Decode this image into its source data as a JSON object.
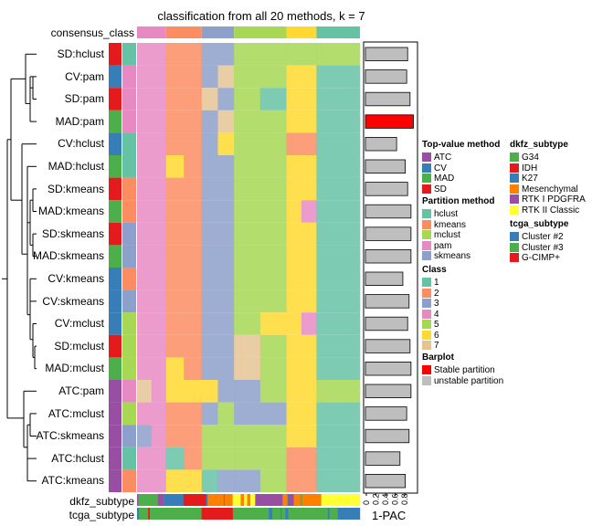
{
  "title": "classification from all 20 methods, k = 7",
  "labels": {
    "consensus": "consensus_class",
    "dkfz": "dkfz_subtype",
    "tcga": "tcga_subtype",
    "barplot_axis": "1-PAC"
  },
  "colors": {
    "class": {
      "1": "#66C2A5",
      "2": "#FC8D62",
      "3": "#8DA0CB",
      "4": "#E78AC3",
      "5": "#A6D854",
      "6": "#FFD92F",
      "7": "#E5C494"
    },
    "top": {
      "ATC": "#984EA3",
      "CV": "#377EB8",
      "MAD": "#4DAF4A",
      "SD": "#E41A1C"
    },
    "part": {
      "hclust": "#66C2A5",
      "kmeans": "#FC8D62",
      "mclust": "#A6D854",
      "pam": "#E78AC3",
      "skmeans": "#8DA0CB"
    },
    "dkfz": {
      "G34": "#4DAF4A",
      "IDH": "#E41A1C",
      "K27": "#377EB8",
      "Mesenchymal": "#FF7F00",
      "RTK I PDGFRA": "#984EA3",
      "RTK II Classic": "#FFFF33"
    },
    "tcga": {
      "Cluster #2": "#377EB8",
      "Cluster #3": "#4DAF4A",
      "G-CIMP+": "#E41A1C"
    },
    "stable": "#FF0000",
    "unstable": "#BEBEBE"
  },
  "legends": [
    {
      "title": "Top-value method",
      "items": [
        [
          "ATC",
          "#984EA3"
        ],
        [
          "CV",
          "#377EB8"
        ],
        [
          "MAD",
          "#4DAF4A"
        ],
        [
          "SD",
          "#E41A1C"
        ]
      ]
    },
    {
      "title": "Partition method",
      "items": [
        [
          "hclust",
          "#66C2A5"
        ],
        [
          "kmeans",
          "#FC8D62"
        ],
        [
          "mclust",
          "#A6D854"
        ],
        [
          "pam",
          "#E78AC3"
        ],
        [
          "skmeans",
          "#8DA0CB"
        ]
      ]
    },
    {
      "title": "Class",
      "items": [
        [
          "1",
          "#66C2A5"
        ],
        [
          "2",
          "#FC8D62"
        ],
        [
          "3",
          "#8DA0CB"
        ],
        [
          "4",
          "#E78AC3"
        ],
        [
          "5",
          "#A6D854"
        ],
        [
          "6",
          "#FFD92F"
        ],
        [
          "7",
          "#E5C494"
        ]
      ]
    },
    {
      "title": "Barplot",
      "items": [
        [
          "Stable partition",
          "#FF0000"
        ],
        [
          "unstable partition",
          "#BEBEBE"
        ]
      ]
    },
    {
      "title": "dkfz_subtype",
      "items": [
        [
          "G34",
          "#4DAF4A"
        ],
        [
          "IDH",
          "#E41A1C"
        ],
        [
          "K27",
          "#377EB8"
        ],
        [
          "Mesenchymal",
          "#FF7F00"
        ],
        [
          "RTK I PDGFRA",
          "#984EA3"
        ],
        [
          "RTK II Classic",
          "#FFFF33"
        ]
      ]
    },
    {
      "title": "tcga_subtype",
      "items": [
        [
          "Cluster #2",
          "#377EB8"
        ],
        [
          "Cluster #3",
          "#4DAF4A"
        ],
        [
          "G-CIMP+",
          "#E41A1C"
        ]
      ]
    }
  ],
  "chart_data": {
    "type": "heatmap",
    "title": "classification from all 20 methods, k = 7",
    "consensus_class": [
      4,
      2,
      3,
      5,
      6,
      1
    ],
    "consensus_block_share": [
      0.13,
      0.16,
      0.145,
      0.235,
      0.135,
      0.195
    ],
    "rows": [
      {
        "label": "SD:hclust",
        "top": "SD",
        "part": "hclust",
        "pac": 0.88,
        "stable": false,
        "blocks": [
          [
            4
          ],
          [
            2
          ],
          [
            3
          ],
          [
            5
          ],
          [
            5
          ],
          [
            5
          ]
        ]
      },
      {
        "label": "CV:pam",
        "top": "CV",
        "part": "pam",
        "pac": 0.86,
        "stable": false,
        "blocks": [
          [
            4
          ],
          [
            2
          ],
          [
            3,
            7
          ],
          [
            5
          ],
          [
            6
          ],
          [
            1
          ]
        ]
      },
      {
        "label": "SD:pam",
        "top": "SD",
        "part": "pam",
        "pac": 0.93,
        "stable": false,
        "blocks": [
          [
            4
          ],
          [
            2
          ],
          [
            7,
            3
          ],
          [
            5,
            1
          ],
          [
            6
          ],
          [
            1
          ]
        ]
      },
      {
        "label": "MAD:pam",
        "top": "MAD",
        "part": "pam",
        "pac": 1.0,
        "stable": true,
        "blocks": [
          [
            4
          ],
          [
            2
          ],
          [
            3,
            7
          ],
          [
            5
          ],
          [
            6
          ],
          [
            1
          ]
        ]
      },
      {
        "label": "CV:hclust",
        "top": "CV",
        "part": "hclust",
        "pac": 0.65,
        "stable": false,
        "blocks": [
          [
            4
          ],
          [
            2
          ],
          [
            3,
            6
          ],
          [
            5
          ],
          [
            2
          ],
          [
            1
          ]
        ]
      },
      {
        "label": "MAD:hclust",
        "top": "MAD",
        "part": "hclust",
        "pac": 0.83,
        "stable": false,
        "blocks": [
          [
            4
          ],
          [
            6,
            2
          ],
          [
            3
          ],
          [
            5
          ],
          [
            6
          ],
          [
            1
          ]
        ]
      },
      {
        "label": "SD:kmeans",
        "top": "SD",
        "part": "kmeans",
        "pac": 0.88,
        "stable": false,
        "blocks": [
          [
            4
          ],
          [
            2
          ],
          [
            3
          ],
          [
            5
          ],
          [
            6
          ],
          [
            1
          ]
        ]
      },
      {
        "label": "MAD:kmeans",
        "top": "MAD",
        "part": "kmeans",
        "pac": 0.95,
        "stable": false,
        "blocks": [
          [
            4
          ],
          [
            2
          ],
          [
            3
          ],
          [
            5
          ],
          [
            6,
            4
          ],
          [
            1
          ]
        ]
      },
      {
        "label": "SD:skmeans",
        "top": "SD",
        "part": "skmeans",
        "pac": 0.95,
        "stable": false,
        "blocks": [
          [
            4
          ],
          [
            2
          ],
          [
            3
          ],
          [
            5
          ],
          [
            6
          ],
          [
            1
          ]
        ]
      },
      {
        "label": "MAD:skmeans",
        "top": "MAD",
        "part": "skmeans",
        "pac": 0.95,
        "stable": false,
        "blocks": [
          [
            4
          ],
          [
            2
          ],
          [
            3
          ],
          [
            5
          ],
          [
            6
          ],
          [
            1
          ]
        ]
      },
      {
        "label": "CV:kmeans",
        "top": "CV",
        "part": "kmeans",
        "pac": 0.78,
        "stable": false,
        "blocks": [
          [
            4
          ],
          [
            2
          ],
          [
            3
          ],
          [
            5
          ],
          [
            6
          ],
          [
            1
          ]
        ]
      },
      {
        "label": "CV:skmeans",
        "top": "CV",
        "part": "skmeans",
        "pac": 0.91,
        "stable": false,
        "blocks": [
          [
            4
          ],
          [
            2
          ],
          [
            3
          ],
          [
            5
          ],
          [
            6
          ],
          [
            1
          ]
        ]
      },
      {
        "label": "CV:mclust",
        "top": "CV",
        "part": "mclust",
        "pac": 0.88,
        "stable": false,
        "blocks": [
          [
            4
          ],
          [
            2
          ],
          [
            3
          ],
          [
            5,
            6
          ],
          [
            6,
            4
          ],
          [
            1
          ]
        ]
      },
      {
        "label": "SD:mclust",
        "top": "SD",
        "part": "mclust",
        "pac": 0.93,
        "stable": false,
        "blocks": [
          [
            4
          ],
          [
            2
          ],
          [
            3
          ],
          [
            7,
            5
          ],
          [
            6
          ],
          [
            1
          ]
        ]
      },
      {
        "label": "MAD:mclust",
        "top": "MAD",
        "part": "mclust",
        "pac": 0.95,
        "stable": false,
        "blocks": [
          [
            4
          ],
          [
            6,
            2
          ],
          [
            3
          ],
          [
            7,
            5
          ],
          [
            6
          ],
          [
            1
          ]
        ]
      },
      {
        "label": "ATC:pam",
        "top": "ATC",
        "part": "pam",
        "pac": 0.95,
        "stable": false,
        "blocks": [
          [
            7,
            4
          ],
          [
            6
          ],
          [
            6,
            3
          ],
          [
            3,
            5
          ],
          [
            6
          ],
          [
            5
          ]
        ]
      },
      {
        "label": "ATC:mclust",
        "top": "ATC",
        "part": "mclust",
        "pac": 0.86,
        "stable": false,
        "blocks": [
          [
            4
          ],
          [
            2
          ],
          [
            3,
            5
          ],
          [
            3
          ],
          [
            6
          ],
          [
            1
          ]
        ]
      },
      {
        "label": "ATC:skmeans",
        "top": "ATC",
        "part": "skmeans",
        "pac": 0.91,
        "stable": false,
        "blocks": [
          [
            3,
            4
          ],
          [
            2
          ],
          [
            5
          ],
          [
            5
          ],
          [
            6
          ],
          [
            1
          ]
        ]
      },
      {
        "label": "ATC:hclust",
        "top": "ATC",
        "part": "hclust",
        "pac": 0.72,
        "stable": false,
        "blocks": [
          [
            4
          ],
          [
            1,
            2
          ],
          [
            5
          ],
          [
            5
          ],
          [
            2
          ],
          [
            1
          ]
        ]
      },
      {
        "label": "ATC:kmeans",
        "top": "ATC",
        "part": "kmeans",
        "pac": 0.83,
        "stable": false,
        "blocks": [
          [
            4
          ],
          [
            6
          ],
          [
            1,
            3
          ],
          [
            3,
            5
          ],
          [
            2
          ],
          [
            1
          ]
        ]
      }
    ],
    "dkfz_subtype": [
      [
        "RTK I PDGFRA",
        0.8
      ],
      [
        "G34",
        12
      ],
      [
        "RTK I PDGFRA",
        4
      ],
      [
        "K27",
        12
      ],
      [
        "IDH",
        14
      ],
      [
        "K27",
        1
      ],
      [
        "Mesenchymal",
        10
      ],
      [
        "K27",
        0.5
      ],
      [
        "Mesenchymal",
        5
      ],
      [
        "RTK II Classic",
        5
      ],
      [
        "Mesenchymal",
        2
      ],
      [
        "RTK II Classic",
        2
      ],
      [
        "Mesenchymal",
        2
      ],
      [
        "RTK II Classic",
        3
      ],
      [
        "RTK I PDGFRA",
        17
      ],
      [
        "Mesenchymal",
        3
      ],
      [
        "K27",
        1
      ],
      [
        "RTK I PDGFRA",
        3
      ],
      [
        "Mesenchymal",
        4
      ],
      [
        "G34",
        1
      ],
      [
        "Mesenchymal",
        12
      ],
      [
        "RTK II Classic",
        24
      ]
    ],
    "tcga_subtype": [
      [
        "Cluster #2",
        2
      ],
      [
        "Cluster #3",
        10
      ],
      [
        "G-CIMP+",
        2
      ],
      [
        "Cluster #3",
        56
      ],
      [
        "G-CIMP+",
        34
      ],
      [
        "Cluster #3",
        39
      ],
      [
        "Cluster #2",
        4
      ],
      [
        "Cluster #3",
        9
      ],
      [
        "Cluster #2",
        1
      ],
      [
        "Cluster #3",
        4
      ],
      [
        "Cluster #2",
        3
      ],
      [
        "Cluster #3",
        43
      ],
      [
        "Cluster #2",
        2
      ],
      [
        "Cluster #3",
        9
      ],
      [
        "Cluster #2",
        24
      ]
    ],
    "barplot": {
      "xlabel": "1-PAC",
      "ticks": [
        "0",
        "0.2",
        "0.4",
        "0.6",
        "0.8"
      ],
      "xlim": [
        0,
        1.05
      ]
    }
  }
}
